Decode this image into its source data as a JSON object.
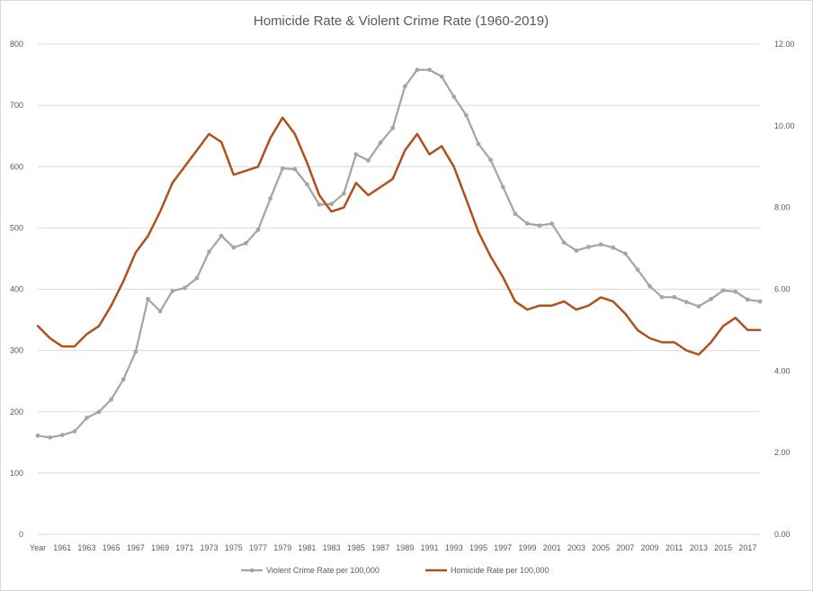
{
  "chart_data": {
    "type": "line",
    "title": "Homicide Rate & Violent Crime Rate (1960-2019)",
    "x_label_first": "Year",
    "x_tick_labels": [
      "Year",
      "1961",
      "1963",
      "1965",
      "1967",
      "1969",
      "1971",
      "1973",
      "1975",
      "1977",
      "1979",
      "1981",
      "1983",
      "1985",
      "1987",
      "1989",
      "1991",
      "1993",
      "1995",
      "1997",
      "1999",
      "2001",
      "2003",
      "2005",
      "2007",
      "2009",
      "2011",
      "2013",
      "2015",
      "2017"
    ],
    "years": [
      1960,
      1961,
      1962,
      1963,
      1964,
      1965,
      1966,
      1967,
      1968,
      1969,
      1970,
      1971,
      1972,
      1973,
      1974,
      1975,
      1976,
      1977,
      1978,
      1979,
      1980,
      1981,
      1982,
      1983,
      1984,
      1985,
      1986,
      1987,
      1988,
      1989,
      1990,
      1991,
      1992,
      1993,
      1994,
      1995,
      1996,
      1997,
      1998,
      1999,
      2000,
      2001,
      2002,
      2003,
      2004,
      2005,
      2006,
      2007,
      2008,
      2009,
      2010,
      2011,
      2012,
      2013,
      2014,
      2015,
      2016,
      2017,
      2018,
      2019
    ],
    "y_left": {
      "min": 0,
      "max": 800,
      "ticks": [
        "0",
        "100",
        "200",
        "300",
        "400",
        "500",
        "600",
        "700",
        "800"
      ]
    },
    "y_right": {
      "min": 0,
      "max": 12,
      "ticks": [
        "0.00",
        "2.00",
        "4.00",
        "6.00",
        "8.00",
        "10.00",
        "12.00"
      ]
    },
    "gridlines": true,
    "legend_position": "bottom",
    "series": [
      {
        "name": "Violent Crime Rate per 100,000",
        "axis": "left",
        "color": "#a5a5a5",
        "markers": true,
        "values": [
          161,
          158,
          162,
          168,
          190,
          200,
          220,
          253,
          298,
          384,
          364,
          397,
          402,
          418,
          461,
          487,
          468,
          475,
          497,
          548,
          597,
          596,
          571,
          538,
          539,
          556,
          620,
          610,
          639,
          663,
          731,
          758,
          758,
          747,
          714,
          684,
          637,
          611,
          567,
          523,
          507,
          504,
          507,
          476,
          463,
          469,
          473,
          468,
          458,
          432,
          405,
          387,
          387,
          379,
          372,
          384,
          398,
          396,
          383,
          380
        ]
      },
      {
        "name": "Homicide Rate per 100,000",
        "axis": "right",
        "color": "#b0501a",
        "markers": false,
        "values": [
          5.1,
          4.8,
          4.6,
          4.6,
          4.9,
          5.1,
          5.6,
          6.2,
          6.9,
          7.3,
          7.9,
          8.6,
          9.0,
          9.4,
          9.8,
          9.6,
          8.8,
          8.9,
          9.0,
          9.7,
          10.2,
          9.8,
          9.1,
          8.3,
          7.9,
          8.0,
          8.6,
          8.3,
          8.5,
          8.7,
          9.4,
          9.8,
          9.3,
          9.5,
          9.0,
          8.2,
          7.4,
          6.8,
          6.3,
          5.7,
          5.5,
          5.6,
          5.6,
          5.7,
          5.5,
          5.6,
          5.8,
          5.7,
          5.4,
          5.0,
          4.8,
          4.7,
          4.7,
          4.5,
          4.4,
          4.7,
          5.1,
          5.3,
          5.0,
          5.0
        ]
      }
    ]
  }
}
